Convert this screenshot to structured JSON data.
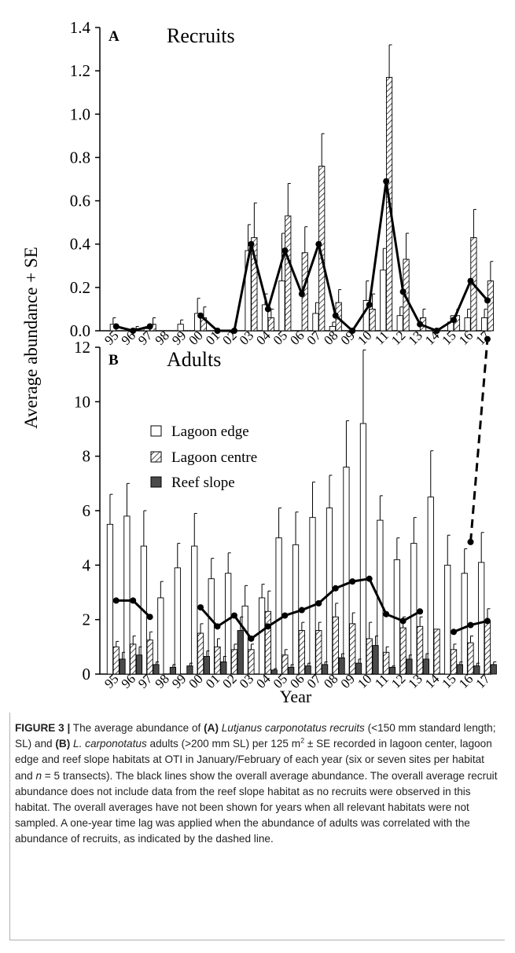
{
  "colors": {
    "lagoon_edge": "#ffffff",
    "reef_slope": "#4a4a4a",
    "line": "#000000"
  },
  "chart_data": [
    {
      "panel": "A",
      "title": "Recruits",
      "type": "bar",
      "ylabel": "Average abundance + SE",
      "ylim": [
        0,
        1.4
      ],
      "yticks": [
        "0.0",
        "0.2",
        "0.4",
        "0.6",
        "0.8",
        "1.0",
        "1.2",
        "1.4"
      ],
      "categories": [
        "95",
        "96",
        "97",
        "98",
        "99",
        "00",
        "01",
        "02",
        "03",
        "04",
        "05",
        "06",
        "07",
        "08",
        "09",
        "10",
        "11",
        "12",
        "13",
        "14",
        "15",
        "16",
        "17"
      ],
      "series": [
        {
          "name": "Lagoon edge",
          "values": [
            0.03,
            0.0,
            0.01,
            0.0,
            0.03,
            0.08,
            0.0,
            0.0,
            0.37,
            0.12,
            0.23,
            0.0,
            0.08,
            0.02,
            0.0,
            0.14,
            0.28,
            0.07,
            0.0,
            0.0,
            0.04,
            0.06,
            0.06
          ],
          "errors": [
            0.03,
            0.0,
            0.01,
            0.0,
            0.02,
            0.07,
            0.0,
            0.0,
            0.12,
            0.05,
            0.22,
            0.0,
            0.05,
            0.02,
            0.0,
            0.09,
            0.1,
            0.04,
            0.0,
            0.0,
            0.03,
            0.04,
            0.04
          ]
        },
        {
          "name": "Lagoon centre",
          "values": [
            0.0,
            0.01,
            0.03,
            0.0,
            0.0,
            0.06,
            0.0,
            0.0,
            0.43,
            0.06,
            0.53,
            0.36,
            0.76,
            0.13,
            0.0,
            0.1,
            1.17,
            0.33,
            0.06,
            0.0,
            0.07,
            0.43,
            0.23
          ],
          "errors": [
            0.0,
            0.01,
            0.03,
            0.0,
            0.0,
            0.05,
            0.0,
            0.0,
            0.16,
            0.04,
            0.15,
            0.12,
            0.15,
            0.06,
            0.0,
            0.07,
            0.15,
            0.12,
            0.04,
            0.0,
            0.03,
            0.13,
            0.09
          ]
        }
      ],
      "average_line": [
        {
          "x": "95",
          "y": 0.02
        },
        {
          "x": "96",
          "y": 0.0
        },
        {
          "x": "97",
          "y": 0.02
        },
        {
          "x": "00",
          "y": 0.07
        },
        {
          "x": "01",
          "y": 0.0
        },
        {
          "x": "02",
          "y": 0.0
        },
        {
          "x": "03",
          "y": 0.4
        },
        {
          "x": "04",
          "y": 0.1
        },
        {
          "x": "05",
          "y": 0.37
        },
        {
          "x": "06",
          "y": 0.17
        },
        {
          "x": "07",
          "y": 0.4
        },
        {
          "x": "08",
          "y": 0.07
        },
        {
          "x": "09",
          "y": 0.0
        },
        {
          "x": "10",
          "y": 0.12
        },
        {
          "x": "11",
          "y": 0.69
        },
        {
          "x": "12",
          "y": 0.18
        },
        {
          "x": "13",
          "y": 0.03
        },
        {
          "x": "14",
          "y": 0.0
        },
        {
          "x": "15",
          "y": 0.05
        },
        {
          "x": "16",
          "y": 0.23
        },
        {
          "x": "17",
          "y": 0.14
        }
      ]
    },
    {
      "panel": "B",
      "title": "Adults",
      "type": "bar",
      "xlabel": "Year",
      "ylim": [
        0,
        12
      ],
      "yticks": [
        "0",
        "2",
        "4",
        "6",
        "8",
        "10",
        "12"
      ],
      "categories": [
        "95",
        "96",
        "97",
        "98",
        "99",
        "00",
        "01",
        "02",
        "03",
        "04",
        "05",
        "06",
        "07",
        "08",
        "09",
        "10",
        "11",
        "12",
        "13",
        "14",
        "15",
        "16",
        "17"
      ],
      "legend": [
        "Lagoon edge",
        "Lagoon centre",
        "Reef slope"
      ],
      "series": [
        {
          "name": "Lagoon edge",
          "values": [
            5.5,
            5.8,
            4.7,
            2.8,
            3.9,
            4.7,
            3.5,
            3.7,
            2.5,
            2.8,
            5.0,
            4.75,
            5.75,
            6.1,
            7.6,
            9.2,
            5.65,
            4.2,
            4.8,
            6.5,
            4.0,
            3.7,
            4.1
          ],
          "errors": [
            1.1,
            1.2,
            1.3,
            0.6,
            0.9,
            1.2,
            0.75,
            0.75,
            0.75,
            0.5,
            1.1,
            1.2,
            1.3,
            1.2,
            1.7,
            2.7,
            0.9,
            0.8,
            0.95,
            1.7,
            1.1,
            0.9,
            1.1
          ]
        },
        {
          "name": "Lagoon centre",
          "values": [
            1.0,
            1.1,
            1.25,
            0.0,
            0.0,
            1.5,
            1.0,
            0.9,
            0.9,
            2.3,
            0.7,
            1.6,
            1.6,
            2.1,
            1.85,
            1.3,
            0.8,
            1.7,
            1.75,
            1.65,
            0.9,
            1.15,
            1.95
          ],
          "errors": [
            0.2,
            0.3,
            0.3,
            0.0,
            0.0,
            0.35,
            0.3,
            0.2,
            0.2,
            0.75,
            0.2,
            0.3,
            0.3,
            0.5,
            0.4,
            0.6,
            0.2,
            0.4,
            0.35,
            0.0,
            0.2,
            0.25,
            0.45
          ]
        },
        {
          "name": "Reef slope",
          "values": [
            0.55,
            0.7,
            0.35,
            0.25,
            0.3,
            0.65,
            0.45,
            1.6,
            0.0,
            0.15,
            0.25,
            0.3,
            0.35,
            0.6,
            0.4,
            1.05,
            0.25,
            0.55,
            0.55,
            0.0,
            0.35,
            0.3,
            0.35
          ],
          "errors": [
            0.25,
            0.3,
            0.1,
            0.1,
            0.1,
            0.2,
            0.2,
            0.5,
            0.0,
            0.05,
            0.1,
            0.1,
            0.1,
            0.15,
            0.15,
            0.35,
            0.05,
            0.15,
            0.2,
            0.0,
            0.1,
            0.1,
            0.1
          ]
        }
      ],
      "average_line": [
        {
          "x": "95",
          "y": 2.7
        },
        {
          "x": "96",
          "y": 2.7
        },
        {
          "x": "97",
          "y": 2.1
        },
        {
          "x": "00",
          "y": 2.45
        },
        {
          "x": "01",
          "y": 1.75
        },
        {
          "x": "02",
          "y": 2.15
        },
        {
          "x": "03",
          "y": 1.3
        },
        {
          "x": "04",
          "y": 1.75
        },
        {
          "x": "05",
          "y": 2.15
        },
        {
          "x": "06",
          "y": 2.35
        },
        {
          "x": "07",
          "y": 2.6
        },
        {
          "x": "08",
          "y": 3.15
        },
        {
          "x": "09",
          "y": 3.4
        },
        {
          "x": "10",
          "y": 3.5
        },
        {
          "x": "11",
          "y": 2.2
        },
        {
          "x": "12",
          "y": 1.95
        },
        {
          "x": "13",
          "y": 2.3
        },
        {
          "x": "15",
          "y": 1.55
        },
        {
          "x": "16",
          "y": 1.8
        },
        {
          "x": "17",
          "y": 1.95
        }
      ],
      "lag_line": {
        "from": {
          "x": "16",
          "y": 4.85
        },
        "to": {
          "x": "17",
          "y": 12.3
        }
      }
    }
  ],
  "caption": {
    "label": "FIGURE 3 |",
    "parts": [
      {
        "t": " The average abundance of ",
        "s": "n"
      },
      {
        "t": "(A)",
        "s": "b"
      },
      {
        "t": " ",
        "s": "n"
      },
      {
        "t": "Lutjanus carponotatus recruits",
        "s": "i"
      },
      {
        "t": " (<150 mm standard length; SL) and ",
        "s": "n"
      },
      {
        "t": "(B)",
        "s": "b"
      },
      {
        "t": " ",
        "s": "n"
      },
      {
        "t": "L. carponotatus",
        "s": "i"
      },
      {
        "t": " adults (>200 mm SL) per 125 m",
        "s": "n"
      },
      {
        "t": "2",
        "s": "sup"
      },
      {
        "t": " ± SE recorded in lagoon center, lagoon edge and reef slope habitats at OTI in January/February of each year (six or seven sites per habitat and ",
        "s": "n"
      },
      {
        "t": "n",
        "s": "i"
      },
      {
        "t": " = 5 transects). The black lines show the overall average abundance. The overall average recruit abundance does not include data from the reef slope habitat as no recruits were observed in this habitat. The overall averages have not been shown for years when all relevant habitats were not sampled. A one-year time lag was applied when the abundance of adults was correlated with the abundance of recruits, as indicated by the dashed line.",
        "s": "n"
      }
    ]
  }
}
